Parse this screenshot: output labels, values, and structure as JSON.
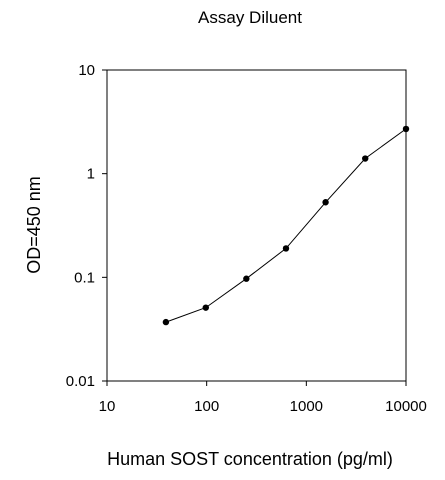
{
  "chart_data": {
    "type": "line",
    "title": "Assay Diluent",
    "xlabel": "Human SOST concentration (pg/ml)",
    "ylabel": "OD=450 nm",
    "xscale": "log",
    "yscale": "log",
    "xlim": [
      10,
      10000
    ],
    "ylim": [
      0.01,
      10
    ],
    "xticks": [
      10,
      100,
      1000,
      10000
    ],
    "xtick_labels": [
      "10",
      "100",
      "1000",
      "10000"
    ],
    "yticks": [
      0.01,
      0.1,
      1,
      10
    ],
    "ytick_labels": [
      "0.01",
      "0.1",
      "1",
      "10"
    ],
    "grid": false,
    "legend": "none",
    "marker": "filled-circle",
    "colors": {
      "line": "#000000",
      "marker": "#000000",
      "axis": "#000000"
    },
    "series": [
      {
        "x": [
          39,
          98,
          250,
          625,
          1560,
          3900,
          10000
        ],
        "y": [
          0.037,
          0.051,
          0.097,
          0.19,
          0.53,
          1.4,
          2.7
        ]
      }
    ]
  }
}
